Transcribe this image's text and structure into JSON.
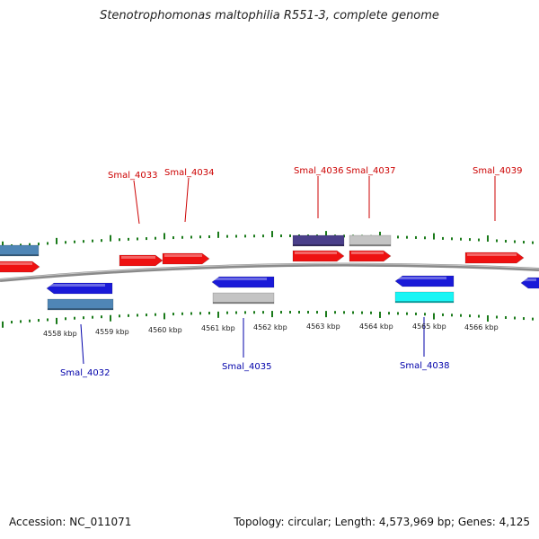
{
  "title": "Stenotrophomonas maltophilia R551-3, complete genome",
  "footer": {
    "accession": "Accession: NC_011071",
    "summary": "Topology: circular; Length: 4,573,969 bp; Genes: 4,125"
  },
  "colors": {
    "forward_cds": "#ee1111",
    "reverse_cds": "#1a1ad8",
    "steelblue_feature": "#4f86b6",
    "gray_feature": "#c4c4c4",
    "darkslate_feature": "#4a3f8a",
    "cyan_feature": "#19f5f5",
    "label_forward": "#cc0000",
    "label_reverse": "#0000aa",
    "tick": "#1a7a1a",
    "backbone": "#888888"
  },
  "scale_labels": [
    "4558 kbp",
    "4559 kbp",
    "4560 kbp",
    "4561 kbp",
    "4562 kbp",
    "4563 kbp",
    "4564 kbp",
    "4565 kbp",
    "4566 kbp"
  ],
  "gene_labels_top": [
    "Smal_4033",
    "Smal_4034",
    "Smal_4036",
    "Smal_4037",
    "Smal_4039"
  ],
  "gene_labels_bottom": [
    "Smal_4032",
    "Smal_4035",
    "Smal_4038"
  ]
}
